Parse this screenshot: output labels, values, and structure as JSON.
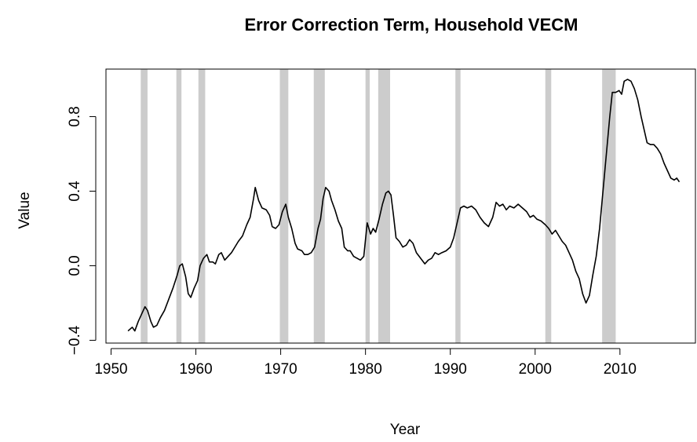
{
  "chart_data": {
    "type": "line",
    "title": "Error Correction Term, Household VECM",
    "x_label": "Year",
    "y_label": "Value",
    "xlim": [
      1949.4,
      2018.9
    ],
    "ylim": [
      -0.415,
      1.055
    ],
    "xticks": [
      1950,
      1960,
      1970,
      1980,
      1990,
      2000,
      2010
    ],
    "yticks": [
      {
        "value": -0.4,
        "label": "−0.4"
      },
      {
        "value": 0,
        "label": "0.0"
      },
      0.4,
      0.8
    ],
    "shaded_regions": {
      "color": "#cccccc",
      "x": [
        [
          1953.5,
          1954.3
        ],
        [
          1957.7,
          1958.3
        ],
        [
          1960.3,
          1961.1
        ],
        [
          1969.9,
          1970.9
        ],
        [
          1973.9,
          1975.2
        ],
        [
          1980.0,
          1980.5
        ],
        [
          1981.5,
          1982.9
        ],
        [
          1990.6,
          1991.2
        ],
        [
          2001.2,
          2001.9
        ],
        [
          2007.9,
          2009.5
        ]
      ]
    },
    "series": [
      {
        "color": "#000000",
        "x": [
          1952.0,
          1952.5,
          1952.8,
          1953.2,
          1953.6,
          1954.0,
          1954.3,
          1954.7,
          1955.0,
          1955.4,
          1955.8,
          1956.3,
          1956.8,
          1957.3,
          1957.8,
          1958.1,
          1958.4,
          1958.8,
          1959.1,
          1959.4,
          1959.8,
          1960.2,
          1960.5,
          1960.9,
          1961.3,
          1961.6,
          1962.0,
          1962.3,
          1962.7,
          1963.0,
          1963.4,
          1963.8,
          1964.2,
          1964.6,
          1965.0,
          1965.5,
          1966.0,
          1966.4,
          1966.8,
          1967.0,
          1967.4,
          1967.8,
          1968.3,
          1968.7,
          1969.0,
          1969.4,
          1969.8,
          1970.2,
          1970.6,
          1970.9,
          1971.3,
          1971.7,
          1972.0,
          1972.5,
          1972.8,
          1973.2,
          1973.6,
          1974.0,
          1974.4,
          1974.7,
          1975.0,
          1975.3,
          1975.7,
          1976.0,
          1976.4,
          1976.8,
          1977.2,
          1977.5,
          1977.9,
          1978.2,
          1978.6,
          1979.0,
          1979.4,
          1979.8,
          1980.2,
          1980.6,
          1980.9,
          1981.2,
          1981.6,
          1982.0,
          1982.4,
          1982.7,
          1983.0,
          1983.3,
          1983.6,
          1984.0,
          1984.4,
          1984.8,
          1985.2,
          1985.6,
          1986.0,
          1986.5,
          1987.0,
          1987.4,
          1987.8,
          1988.2,
          1988.6,
          1989.0,
          1989.5,
          1990.0,
          1990.4,
          1990.8,
          1991.2,
          1991.6,
          1992.0,
          1992.5,
          1993.0,
          1993.5,
          1994.0,
          1994.5,
          1995.0,
          1995.4,
          1995.8,
          1996.2,
          1996.6,
          1997.0,
          1997.5,
          1998.0,
          1998.5,
          1999.0,
          1999.4,
          1999.8,
          2000.2,
          2000.7,
          2001.2,
          2001.6,
          2002.0,
          2002.4,
          2002.8,
          2003.2,
          2003.6,
          2004.0,
          2004.4,
          2004.8,
          2005.2,
          2005.6,
          2006.0,
          2006.4,
          2006.8,
          2007.2,
          2007.6,
          2008.0,
          2008.4,
          2008.8,
          2009.1,
          2009.5,
          2009.9,
          2010.2,
          2010.5,
          2010.9,
          2011.3,
          2011.7,
          2012.1,
          2012.5,
          2012.9,
          2013.2,
          2013.6,
          2014.0,
          2014.4,
          2014.8,
          2015.2,
          2015.6,
          2016.0,
          2016.4,
          2016.7,
          2017.0
        ],
        "values": [
          -0.35,
          -0.33,
          -0.35,
          -0.3,
          -0.26,
          -0.22,
          -0.24,
          -0.3,
          -0.33,
          -0.32,
          -0.28,
          -0.24,
          -0.18,
          -0.12,
          -0.05,
          0.0,
          0.01,
          -0.06,
          -0.15,
          -0.17,
          -0.12,
          -0.08,
          0.0,
          0.04,
          0.06,
          0.02,
          0.02,
          0.01,
          0.06,
          0.07,
          0.03,
          0.05,
          0.07,
          0.1,
          0.13,
          0.16,
          0.22,
          0.26,
          0.36,
          0.42,
          0.35,
          0.31,
          0.3,
          0.27,
          0.21,
          0.2,
          0.22,
          0.29,
          0.33,
          0.26,
          0.2,
          0.12,
          0.09,
          0.08,
          0.06,
          0.06,
          0.07,
          0.1,
          0.2,
          0.25,
          0.36,
          0.42,
          0.4,
          0.35,
          0.3,
          0.24,
          0.2,
          0.1,
          0.08,
          0.08,
          0.05,
          0.04,
          0.03,
          0.05,
          0.23,
          0.17,
          0.2,
          0.18,
          0.25,
          0.33,
          0.39,
          0.4,
          0.38,
          0.27,
          0.15,
          0.13,
          0.1,
          0.11,
          0.14,
          0.12,
          0.07,
          0.04,
          0.01,
          0.03,
          0.04,
          0.07,
          0.06,
          0.07,
          0.08,
          0.1,
          0.15,
          0.23,
          0.31,
          0.32,
          0.31,
          0.32,
          0.3,
          0.26,
          0.23,
          0.21,
          0.26,
          0.34,
          0.32,
          0.33,
          0.3,
          0.32,
          0.31,
          0.33,
          0.31,
          0.29,
          0.26,
          0.27,
          0.25,
          0.24,
          0.22,
          0.2,
          0.17,
          0.19,
          0.16,
          0.13,
          0.11,
          0.07,
          0.03,
          -0.03,
          -0.07,
          -0.15,
          -0.2,
          -0.16,
          -0.05,
          0.05,
          0.2,
          0.4,
          0.6,
          0.8,
          0.93,
          0.93,
          0.94,
          0.92,
          0.99,
          1.0,
          0.99,
          0.95,
          0.89,
          0.8,
          0.72,
          0.66,
          0.65,
          0.65,
          0.63,
          0.6,
          0.55,
          0.51,
          0.47,
          0.46,
          0.47,
          0.45
        ]
      }
    ]
  }
}
